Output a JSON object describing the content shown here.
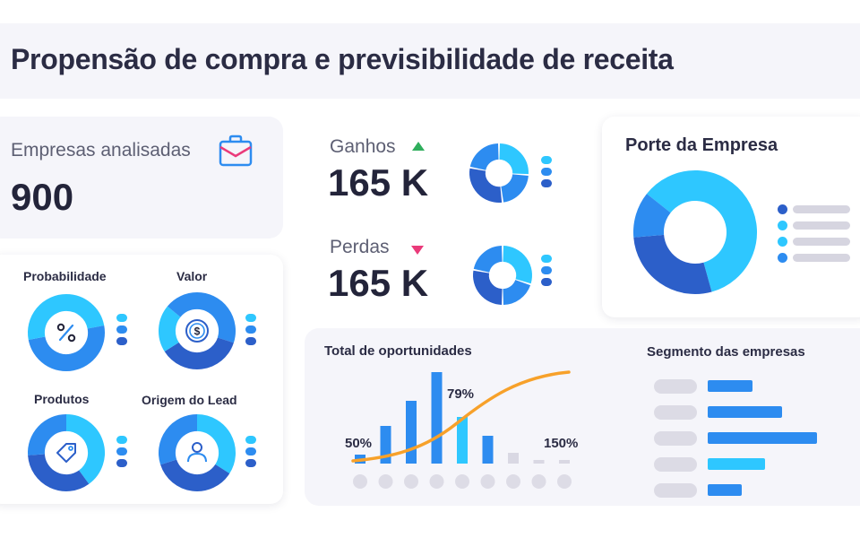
{
  "page_title": "Propensão de compra e previsibilidade de receita",
  "colors": {
    "dark_blue": "#2c5fc9",
    "mid_blue": "#2d8cf0",
    "light_blue": "#2ec7ff",
    "pale": "#d9d8e3",
    "orange": "#f7a12a",
    "green": "#2fae5c",
    "pink": "#ea3a7a"
  },
  "companies": {
    "label": "Empresas analisadas",
    "value": "900",
    "icon": "briefcase-icon"
  },
  "wins": {
    "label": "Ganhos",
    "value": "165 K",
    "trend": "up"
  },
  "losses": {
    "label": "Perdas",
    "value": "165 K",
    "trend": "down"
  },
  "mini_charts": [
    {
      "label": "Probabilidade",
      "icon": "percent-icon"
    },
    {
      "label": "Valor",
      "icon": "dollar-icon"
    },
    {
      "label": "Produtos",
      "icon": "tag-icon"
    },
    {
      "label": "Origem do Lead",
      "icon": "user-icon"
    }
  ],
  "porte": {
    "title": "Porte da Empresa"
  },
  "opportunities": {
    "title": "Total de oportunidades",
    "bar_labels": [
      "50%",
      "79%",
      "150%"
    ]
  },
  "segment": {
    "title": "Segmento das empresas"
  },
  "chart_data": [
    {
      "type": "bar",
      "name_printed": false,
      "title": "Total de oportunidades",
      "categories": [
        "",
        "",
        "",
        "",
        "",
        "",
        "",
        "",
        ""
      ],
      "values": [
        10,
        42,
        70,
        102,
        52,
        31,
        12,
        4,
        4
      ],
      "highlight_index": 4,
      "annotations": [
        "50%",
        "79%",
        "150%"
      ],
      "curve": "s-curve",
      "ylim": [
        0,
        110
      ]
    },
    {
      "type": "bar",
      "orientation": "horizontal",
      "title": "Segmento das empresas",
      "values": [
        50,
        83,
        122,
        64,
        38
      ],
      "xlim": [
        0,
        130
      ]
    },
    {
      "type": "pie",
      "title": "Porte da Empresa",
      "values": [
        60,
        28,
        12
      ],
      "donut": true
    }
  ]
}
